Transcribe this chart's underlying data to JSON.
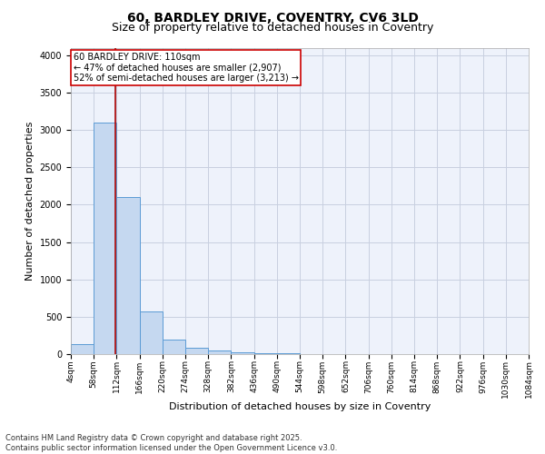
{
  "title": "60, BARDLEY DRIVE, COVENTRY, CV6 3LD",
  "subtitle": "Size of property relative to detached houses in Coventry",
  "xlabel": "Distribution of detached houses by size in Coventry",
  "ylabel": "Number of detached properties",
  "bar_color": "#c5d8f0",
  "bar_edge_color": "#5b9bd5",
  "background_color": "#eef2fb",
  "grid_color": "#c8cfe0",
  "annotation_text": "60 BARDLEY DRIVE: 110sqm\n← 47% of detached houses are smaller (2,907)\n52% of semi-detached houses are larger (3,213) →",
  "property_size": 110,
  "vline_color": "#aa0000",
  "ylim": [
    0,
    4100
  ],
  "yticks": [
    0,
    500,
    1000,
    1500,
    2000,
    2500,
    3000,
    3500,
    4000
  ],
  "bin_edges": [
    4,
    58,
    112,
    166,
    220,
    274,
    328,
    382,
    436,
    490,
    544,
    598,
    652,
    706,
    760,
    814,
    868,
    922,
    976,
    1030,
    1084
  ],
  "bin_labels": [
    "4sqm",
    "58sqm",
    "112sqm",
    "166sqm",
    "220sqm",
    "274sqm",
    "328sqm",
    "382sqm",
    "436sqm",
    "490sqm",
    "544sqm",
    "598sqm",
    "652sqm",
    "706sqm",
    "760sqm",
    "814sqm",
    "868sqm",
    "922sqm",
    "976sqm",
    "1030sqm",
    "1084sqm"
  ],
  "bar_heights": [
    130,
    3100,
    2100,
    570,
    200,
    80,
    50,
    20,
    10,
    8,
    5,
    3,
    2,
    2,
    1,
    1,
    1,
    1,
    1,
    1
  ],
  "annotation_box_color": "#cc0000",
  "footer": "Contains HM Land Registry data © Crown copyright and database right 2025.\nContains public sector information licensed under the Open Government Licence v3.0.",
  "title_fontsize": 10,
  "subtitle_fontsize": 9,
  "axis_label_fontsize": 8,
  "tick_fontsize": 7,
  "annotation_fontsize": 7,
  "footer_fontsize": 6
}
